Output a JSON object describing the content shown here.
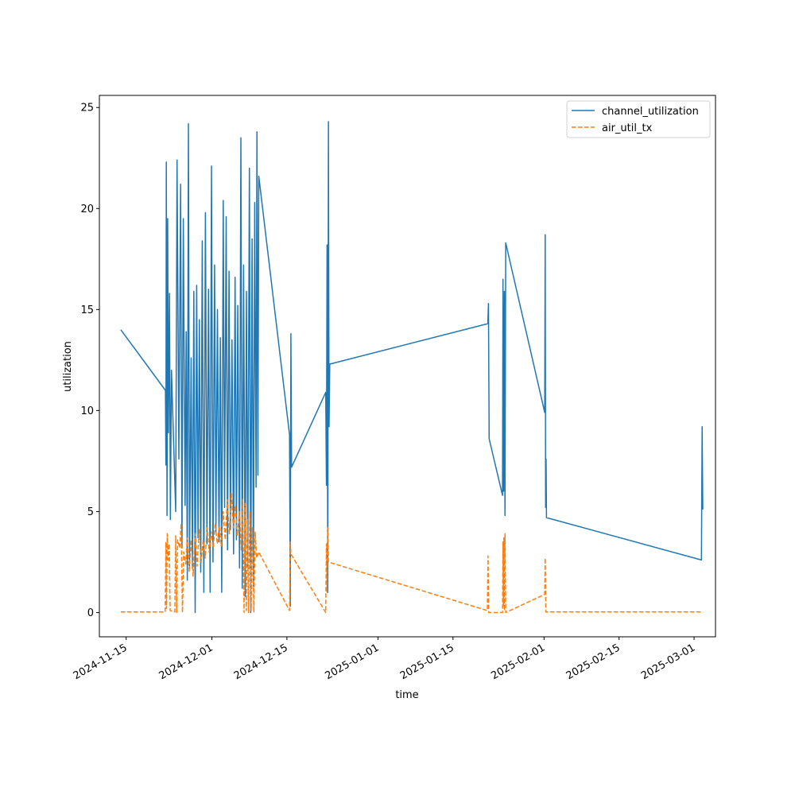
{
  "chart_data": {
    "type": "line",
    "title": "",
    "xlabel": "time",
    "ylabel": "utilization",
    "x_type": "date",
    "xlim": [
      "2024-11-10",
      "2025-03-05"
    ],
    "ylim": [
      -1.2,
      25.6
    ],
    "x_ticks": [
      "2024-11-15",
      "2024-12-01",
      "2024-12-15",
      "2025-01-01",
      "2025-01-15",
      "2025-02-01",
      "2025-02-15",
      "2025-03-01"
    ],
    "y_ticks": [
      0,
      5,
      10,
      15,
      20,
      25
    ],
    "grid": false,
    "legend_position": "upper right",
    "series": [
      {
        "name": "channel_utilization",
        "color": "#1f77b4",
        "style": "solid",
        "points": [
          [
            "2024-11-14T00:00",
            14.0
          ],
          [
            "2024-11-22T08:00",
            11.0
          ],
          [
            "2024-11-22T10:00",
            7.3
          ],
          [
            "2024-11-22T12:00",
            22.3
          ],
          [
            "2024-11-22T15:00",
            4.8
          ],
          [
            "2024-11-22T18:00",
            19.5
          ],
          [
            "2024-11-22T21:00",
            8.9
          ],
          [
            "2024-11-23T02:00",
            15.8
          ],
          [
            "2024-11-23T06:00",
            4.6
          ],
          [
            "2024-11-23T11:00",
            12.0
          ],
          [
            "2024-11-24T06:00",
            5.0
          ],
          [
            "2024-11-24T12:00",
            22.4
          ],
          [
            "2024-11-24T20:00",
            7.6
          ],
          [
            "2024-11-25T04:00",
            21.2
          ],
          [
            "2024-11-25T10:00",
            3.2
          ],
          [
            "2024-11-25T16:00",
            19.5
          ],
          [
            "2024-11-26T00:00",
            5.3
          ],
          [
            "2024-11-26T05:00",
            13.9
          ],
          [
            "2024-11-26T10:00",
            1.6
          ],
          [
            "2024-11-26T15:00",
            24.2
          ],
          [
            "2024-11-26T20:00",
            2.3
          ],
          [
            "2024-11-27T03:00",
            12.6
          ],
          [
            "2024-11-27T09:00",
            2.2
          ],
          [
            "2024-11-27T15:00",
            15.9
          ],
          [
            "2024-11-27T21:00",
            0.0
          ],
          [
            "2024-11-28T04:00",
            16.2
          ],
          [
            "2024-11-28T10:00",
            3.7
          ],
          [
            "2024-11-28T16:00",
            14.5
          ],
          [
            "2024-11-28T22:00",
            2.0
          ],
          [
            "2024-11-29T05:00",
            18.4
          ],
          [
            "2024-11-29T12:00",
            1.0
          ],
          [
            "2024-11-29T19:00",
            19.8
          ],
          [
            "2024-11-30T02:00",
            3.4
          ],
          [
            "2024-11-30T09:00",
            16.0
          ],
          [
            "2024-11-30T16:00",
            1.0
          ],
          [
            "2024-11-30T22:00",
            22.1
          ],
          [
            "2024-12-01T05:00",
            2.5
          ],
          [
            "2024-12-01T12:00",
            17.2
          ],
          [
            "2024-12-01T18:00",
            4.0
          ],
          [
            "2024-12-02T01:00",
            15.0
          ],
          [
            "2024-12-02T08:00",
            3.5
          ],
          [
            "2024-12-02T14:00",
            13.6
          ],
          [
            "2024-12-02T20:00",
            1.0
          ],
          [
            "2024-12-03T03:00",
            20.4
          ],
          [
            "2024-12-03T09:00",
            5.2
          ],
          [
            "2024-12-03T16:00",
            19.6
          ],
          [
            "2024-12-03T22:00",
            3.1
          ],
          [
            "2024-12-04T05:00",
            16.9
          ],
          [
            "2024-12-04T11:00",
            4.1
          ],
          [
            "2024-12-04T18:00",
            13.5
          ],
          [
            "2024-12-05T01:00",
            2.9
          ],
          [
            "2024-12-05T08:00",
            16.6
          ],
          [
            "2024-12-05T14:00",
            3.6
          ],
          [
            "2024-12-05T20:00",
            15.2
          ],
          [
            "2024-12-06T04:00",
            2.2
          ],
          [
            "2024-12-06T10:00",
            23.5
          ],
          [
            "2024-12-06T16:00",
            1.2
          ],
          [
            "2024-12-06T22:00",
            17.2
          ],
          [
            "2024-12-07T05:00",
            0.8
          ],
          [
            "2024-12-07T11:00",
            15.9
          ],
          [
            "2024-12-07T17:00",
            2.3
          ],
          [
            "2024-12-08T00:00",
            22.0
          ],
          [
            "2024-12-08T06:00",
            0.0
          ],
          [
            "2024-12-08T12:00",
            18.5
          ],
          [
            "2024-12-08T18:00",
            1.3
          ],
          [
            "2024-12-09T00:00",
            20.3
          ],
          [
            "2024-12-09T06:00",
            6.2
          ],
          [
            "2024-12-09T10:00",
            23.8
          ],
          [
            "2024-12-09T14:00",
            6.8
          ],
          [
            "2024-12-09T18:00",
            21.6
          ],
          [
            "2024-12-15T12:00",
            8.8
          ],
          [
            "2024-12-15T15:00",
            0.3
          ],
          [
            "2024-12-15T18:00",
            13.8
          ],
          [
            "2024-12-15T21:00",
            7.2
          ],
          [
            "2024-12-22T06:00",
            10.9
          ],
          [
            "2024-12-22T09:00",
            6.3
          ],
          [
            "2024-12-22T12:00",
            18.2
          ],
          [
            "2024-12-22T15:00",
            1.0
          ],
          [
            "2024-12-22T18:00",
            24.3
          ],
          [
            "2024-12-22T21:00",
            9.2
          ],
          [
            "2024-12-23T00:00",
            12.3
          ],
          [
            "2025-01-21T12:00",
            14.3
          ],
          [
            "2025-01-21T15:00",
            15.3
          ],
          [
            "2025-01-21T18:00",
            8.6
          ],
          [
            "2025-01-24T06:00",
            5.8
          ],
          [
            "2025-01-24T08:00",
            16.5
          ],
          [
            "2025-01-24T11:00",
            6.0
          ],
          [
            "2025-01-24T14:00",
            15.9
          ],
          [
            "2025-01-24T17:00",
            4.8
          ],
          [
            "2025-01-24T20:00",
            18.3
          ],
          [
            "2025-02-01T03:00",
            9.9
          ],
          [
            "2025-02-01T05:00",
            18.7
          ],
          [
            "2025-02-01T07:00",
            5.2
          ],
          [
            "2025-02-01T09:00",
            7.6
          ],
          [
            "2025-02-01T11:00",
            4.7
          ],
          [
            "2025-03-02T09:00",
            2.6
          ],
          [
            "2025-03-02T12:00",
            9.2
          ],
          [
            "2025-03-02T15:00",
            5.1
          ]
        ]
      },
      {
        "name": "air_util_tx",
        "color": "#ff7f0e",
        "style": "dashed",
        "points": [
          [
            "2024-11-14T00:00",
            0.03
          ],
          [
            "2024-11-22T07:00",
            0.03
          ],
          [
            "2024-11-22T10:00",
            3.5
          ],
          [
            "2024-11-22T13:00",
            0.2
          ],
          [
            "2024-11-22T16:00",
            3.9
          ],
          [
            "2024-11-22T20:00",
            2.6
          ],
          [
            "2024-11-23T01:00",
            3.4
          ],
          [
            "2024-11-23T05:00",
            0.1
          ],
          [
            "2024-11-24T02:00",
            0.03
          ],
          [
            "2024-11-24T06:00",
            3.8
          ],
          [
            "2024-11-24T10:00",
            0.0
          ],
          [
            "2024-11-24T14:00",
            3.6
          ],
          [
            "2024-11-25T00:00",
            3.2
          ],
          [
            "2024-11-25T06:00",
            4.4
          ],
          [
            "2024-11-25T12:00",
            0.0
          ],
          [
            "2024-11-25T18:00",
            3.0
          ],
          [
            "2024-11-26T03:00",
            2.4
          ],
          [
            "2024-11-26T10:00",
            3.7
          ],
          [
            "2024-11-26T18:00",
            2.0
          ],
          [
            "2024-11-27T03:00",
            3.6
          ],
          [
            "2024-11-27T12:00",
            1.8
          ],
          [
            "2024-11-27T21:00",
            3.9
          ],
          [
            "2024-11-28T06:00",
            2.3
          ],
          [
            "2024-11-28T15:00",
            4.1
          ],
          [
            "2024-11-29T00:00",
            2.5
          ],
          [
            "2024-11-29T09:00",
            3.6
          ],
          [
            "2024-11-29T18:00",
            2.7
          ],
          [
            "2024-11-30T03:00",
            4.2
          ],
          [
            "2024-11-30T12:00",
            3.0
          ],
          [
            "2024-11-30T21:00",
            4.0
          ],
          [
            "2024-12-01T06:00",
            3.2
          ],
          [
            "2024-12-01T15:00",
            4.4
          ],
          [
            "2024-12-02T00:00",
            3.4
          ],
          [
            "2024-12-02T09:00",
            4.3
          ],
          [
            "2024-12-02T18:00",
            3.3
          ],
          [
            "2024-12-03T03:00",
            5.0
          ],
          [
            "2024-12-03T12:00",
            3.6
          ],
          [
            "2024-12-03T21:00",
            5.6
          ],
          [
            "2024-12-04T06:00",
            3.9
          ],
          [
            "2024-12-04T15:00",
            5.9
          ],
          [
            "2024-12-05T00:00",
            4.2
          ],
          [
            "2024-12-05T09:00",
            5.3
          ],
          [
            "2024-12-05T18:00",
            3.8
          ],
          [
            "2024-12-06T03:00",
            5.0
          ],
          [
            "2024-12-06T12:00",
            3.1
          ],
          [
            "2024-12-06T18:00",
            5.6
          ],
          [
            "2024-12-07T00:00",
            0.0
          ],
          [
            "2024-12-07T05:00",
            5.4
          ],
          [
            "2024-12-07T10:00",
            0.1
          ],
          [
            "2024-12-07T15:00",
            4.6
          ],
          [
            "2024-12-07T20:00",
            0.0
          ],
          [
            "2024-12-08T02:00",
            5.0
          ],
          [
            "2024-12-08T08:00",
            0.1
          ],
          [
            "2024-12-08T14:00",
            4.2
          ],
          [
            "2024-12-08T20:00",
            0.0
          ],
          [
            "2024-12-09T02:00",
            4.0
          ],
          [
            "2024-12-09T08:00",
            2.7
          ],
          [
            "2024-12-09T18:00",
            3.0
          ],
          [
            "2024-12-15T12:00",
            0.1
          ],
          [
            "2024-12-15T15:00",
            3.5
          ],
          [
            "2024-12-15T18:00",
            2.9
          ],
          [
            "2024-12-22T06:00",
            0.0
          ],
          [
            "2024-12-22T09:00",
            3.4
          ],
          [
            "2024-12-22T12:00",
            1.0
          ],
          [
            "2024-12-22T15:00",
            4.2
          ],
          [
            "2024-12-22T18:00",
            2.5
          ],
          [
            "2025-01-21T10:00",
            0.1
          ],
          [
            "2025-01-21T13:00",
            2.8
          ],
          [
            "2025-01-21T16:00",
            0.0
          ],
          [
            "2025-01-24T06:00",
            0.0
          ],
          [
            "2025-01-24T08:00",
            3.5
          ],
          [
            "2025-01-24T10:00",
            0.3
          ],
          [
            "2025-01-24T12:00",
            3.7
          ],
          [
            "2025-01-24T14:00",
            0.1
          ],
          [
            "2025-01-24T17:00",
            3.9
          ],
          [
            "2025-01-24T20:00",
            0.0
          ],
          [
            "2025-02-01T03:00",
            0.9
          ],
          [
            "2025-02-01T05:00",
            2.7
          ],
          [
            "2025-02-01T08:00",
            0.03
          ],
          [
            "2025-03-02T15:00",
            0.03
          ]
        ]
      }
    ]
  }
}
